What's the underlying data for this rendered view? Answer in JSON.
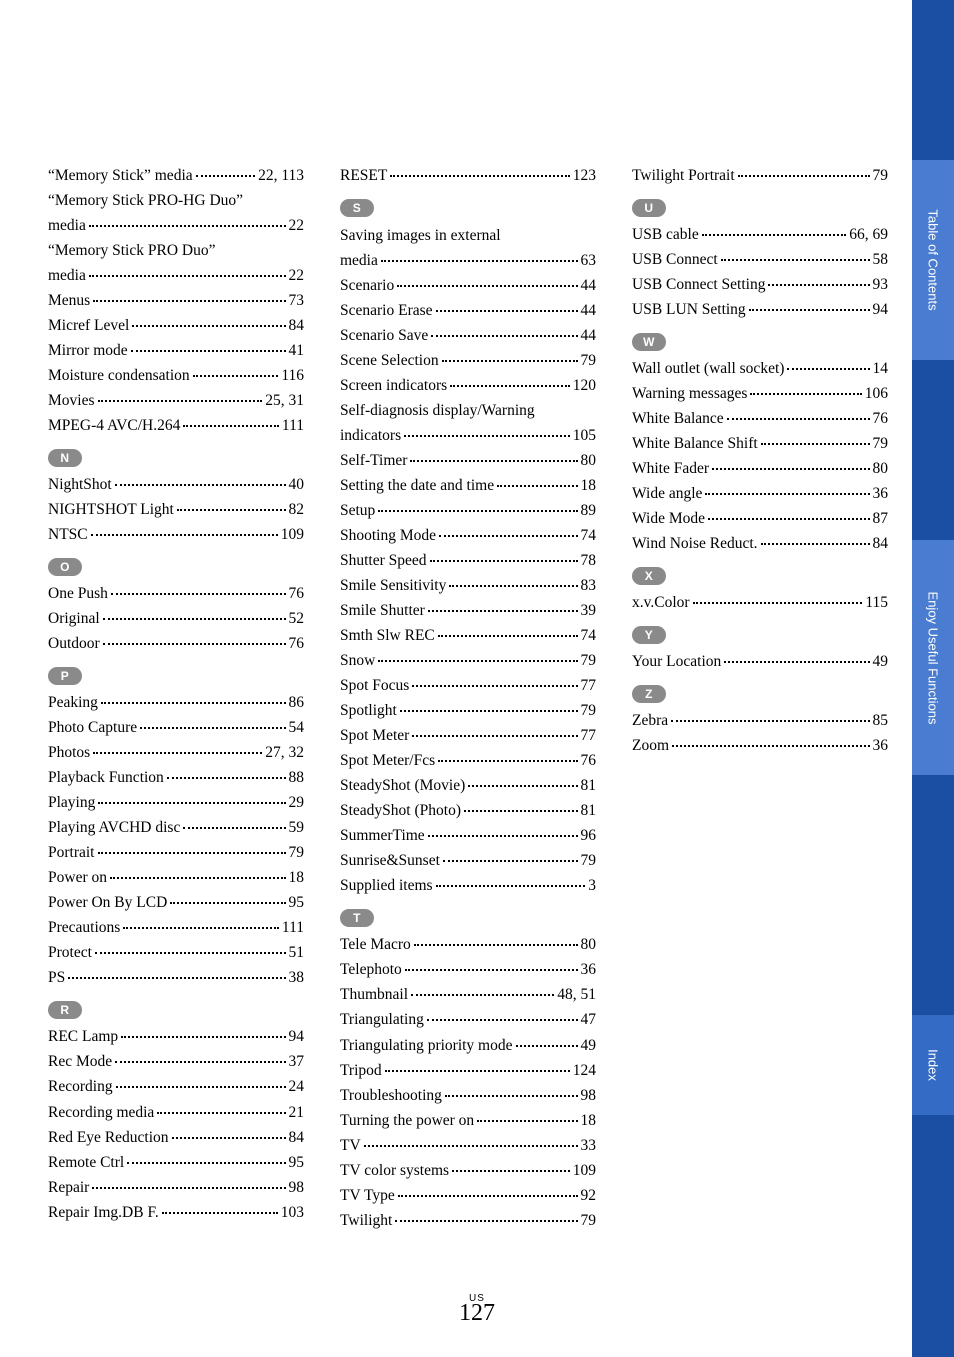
{
  "colors": {
    "sidebar_bg": "#1a4fa3",
    "tab_bg": "#4a7dd1",
    "tab_active": "#346bc4",
    "letter_bg": "#8a8a8a",
    "text": "#000000",
    "page_bg": "#ffffff"
  },
  "typography": {
    "body_font": "Times New Roman",
    "body_size_pt": 12,
    "letter_font": "Arial",
    "pagenum_size_pt": 18
  },
  "page_number": "127",
  "page_super": "US",
  "tabs": [
    {
      "label": "Table of Contents"
    },
    {
      "label": "Enjoy Useful Functions"
    },
    {
      "label": "Index"
    }
  ],
  "columns": [
    {
      "blocks": [
        {
          "type": "entries",
          "items": [
            {
              "term": "“Memory Stick” media",
              "page": "22, 113"
            },
            {
              "term": "“Memory Stick PRO-HG Duo” media",
              "page": "22",
              "wrap": true
            },
            {
              "term": "“Memory Stick PRO Duo” media",
              "page": "22",
              "wrap": true
            },
            {
              "term": "Menus",
              "page": "73"
            },
            {
              "term": "Micref Level",
              "page": "84"
            },
            {
              "term": "Mirror mode",
              "page": "41"
            },
            {
              "term": "Moisture condensation",
              "page": "116"
            },
            {
              "term": "Movies",
              "page": "25, 31"
            },
            {
              "term": "MPEG-4 AVC/H.264",
              "page": "111"
            }
          ]
        },
        {
          "type": "letter",
          "label": "N"
        },
        {
          "type": "entries",
          "items": [
            {
              "term": "NightShot",
              "page": "40"
            },
            {
              "term": "NIGHTSHOT Light",
              "page": "82"
            },
            {
              "term": "NTSC",
              "page": "109"
            }
          ]
        },
        {
          "type": "letter",
          "label": "O"
        },
        {
          "type": "entries",
          "items": [
            {
              "term": "One Push",
              "page": "76"
            },
            {
              "term": "Original",
              "page": "52"
            },
            {
              "term": "Outdoor",
              "page": "76"
            }
          ]
        },
        {
          "type": "letter",
          "label": "P"
        },
        {
          "type": "entries",
          "items": [
            {
              "term": "Peaking",
              "page": "86"
            },
            {
              "term": "Photo Capture",
              "page": "54"
            },
            {
              "term": "Photos",
              "page": "27, 32"
            },
            {
              "term": "Playback Function",
              "page": "88"
            },
            {
              "term": "Playing",
              "page": "29"
            },
            {
              "term": "Playing AVCHD disc",
              "page": "59"
            },
            {
              "term": "Portrait",
              "page": "79"
            },
            {
              "term": "Power on",
              "page": "18"
            },
            {
              "term": "Power On By LCD",
              "page": "95"
            },
            {
              "term": "Precautions",
              "page": "111"
            },
            {
              "term": "Protect",
              "page": "51"
            },
            {
              "term": "PS",
              "page": "38"
            }
          ]
        },
        {
          "type": "letter",
          "label": "R"
        },
        {
          "type": "entries",
          "items": [
            {
              "term": "REC Lamp",
              "page": "94"
            },
            {
              "term": "Rec Mode",
              "page": "37"
            },
            {
              "term": "Recording",
              "page": "24"
            },
            {
              "term": "Recording media",
              "page": "21"
            },
            {
              "term": "Red Eye Reduction",
              "page": "84"
            },
            {
              "term": "Remote Ctrl",
              "page": "95"
            },
            {
              "term": "Repair",
              "page": "98"
            },
            {
              "term": "Repair Img.DB F.",
              "page": "103"
            }
          ]
        }
      ]
    },
    {
      "blocks": [
        {
          "type": "entries",
          "items": [
            {
              "term": "RESET",
              "page": "123"
            }
          ]
        },
        {
          "type": "letter",
          "label": "S"
        },
        {
          "type": "entries",
          "items": [
            {
              "term": "Saving images in external media",
              "page": "63",
              "wrap": true
            },
            {
              "term": "Scenario",
              "page": "44"
            },
            {
              "term": "Scenario Erase",
              "page": "44"
            },
            {
              "term": "Scenario Save",
              "page": "44"
            },
            {
              "term": "Scene Selection",
              "page": "79"
            },
            {
              "term": "Screen indicators",
              "page": "120"
            },
            {
              "term": "Self-diagnosis display/Warning indicators",
              "page": "105",
              "wrap": true
            },
            {
              "term": "Self-Timer",
              "page": "80"
            },
            {
              "term": "Setting the date and time",
              "page": "18"
            },
            {
              "term": "Setup",
              "page": "89"
            },
            {
              "term": "Shooting Mode",
              "page": "74"
            },
            {
              "term": "Shutter Speed",
              "page": "78"
            },
            {
              "term": "Smile Sensitivity",
              "page": "83"
            },
            {
              "term": "Smile Shutter",
              "page": "39"
            },
            {
              "term": "Smth Slw REC",
              "page": "74"
            },
            {
              "term": "Snow",
              "page": "79"
            },
            {
              "term": "Spot Focus",
              "page": "77"
            },
            {
              "term": "Spotlight",
              "page": "79"
            },
            {
              "term": "Spot Meter",
              "page": "77"
            },
            {
              "term": "Spot Meter/Fcs",
              "page": "76"
            },
            {
              "term": "SteadyShot (Movie)",
              "page": "81"
            },
            {
              "term": "SteadyShot (Photo)",
              "page": "81"
            },
            {
              "term": "SummerTime",
              "page": "96"
            },
            {
              "term": "Sunrise&Sunset",
              "page": "79"
            },
            {
              "term": "Supplied items",
              "page": "3"
            }
          ]
        },
        {
          "type": "letter",
          "label": "T"
        },
        {
          "type": "entries",
          "items": [
            {
              "term": "Tele Macro",
              "page": "80"
            },
            {
              "term": "Telephoto",
              "page": "36"
            },
            {
              "term": "Thumbnail",
              "page": "48, 51"
            },
            {
              "term": "Triangulating",
              "page": "47"
            },
            {
              "term": "Triangulating priority mode",
              "page": "49"
            },
            {
              "term": "Tripod",
              "page": "124"
            },
            {
              "term": "Troubleshooting",
              "page": "98"
            },
            {
              "term": "Turning the power on",
              "page": "18"
            },
            {
              "term": "TV",
              "page": "33"
            },
            {
              "term": "TV color systems",
              "page": "109"
            },
            {
              "term": "TV Type",
              "page": "92"
            },
            {
              "term": "Twilight",
              "page": "79"
            }
          ]
        }
      ]
    },
    {
      "blocks": [
        {
          "type": "entries",
          "items": [
            {
              "term": "Twilight Portrait",
              "page": "79"
            }
          ]
        },
        {
          "type": "letter",
          "label": "U"
        },
        {
          "type": "entries",
          "items": [
            {
              "term": "USB cable",
              "page": "66, 69"
            },
            {
              "term": "USB Connect",
              "page": "58"
            },
            {
              "term": "USB Connect Setting",
              "page": "93"
            },
            {
              "term": "USB LUN Setting",
              "page": "94"
            }
          ]
        },
        {
          "type": "letter",
          "label": "W"
        },
        {
          "type": "entries",
          "items": [
            {
              "term": "Wall outlet (wall socket)",
              "page": "14"
            },
            {
              "term": "Warning messages",
              "page": "106"
            },
            {
              "term": "White Balance",
              "page": "76"
            },
            {
              "term": "White Balance Shift",
              "page": "79"
            },
            {
              "term": "White Fader",
              "page": "80"
            },
            {
              "term": "Wide angle",
              "page": "36"
            },
            {
              "term": "Wide Mode",
              "page": "87"
            },
            {
              "term": "Wind Noise Reduct.",
              "page": "84"
            }
          ]
        },
        {
          "type": "letter",
          "label": "X"
        },
        {
          "type": "entries",
          "items": [
            {
              "term": "x.v.Color",
              "page": "115"
            }
          ]
        },
        {
          "type": "letter",
          "label": "Y"
        },
        {
          "type": "entries",
          "items": [
            {
              "term": "Your Location",
              "page": "49"
            }
          ]
        },
        {
          "type": "letter",
          "label": "Z"
        },
        {
          "type": "entries",
          "items": [
            {
              "term": "Zebra",
              "page": "85"
            },
            {
              "term": "Zoom",
              "page": "36"
            }
          ]
        }
      ]
    }
  ]
}
